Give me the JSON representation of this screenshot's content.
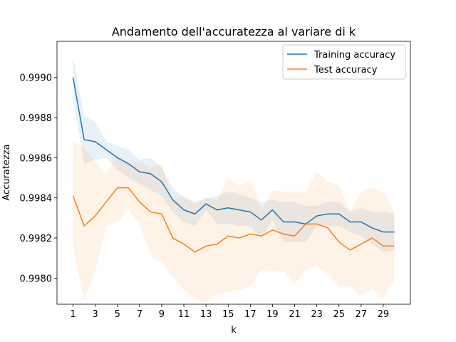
{
  "chart_data": {
    "type": "line",
    "title": "Andamento dell'accuratezza al variare di k",
    "xlabel": "k",
    "ylabel": "Accuratezza",
    "xlim": [
      -0.45,
      31.45
    ],
    "ylim": [
      0.99787,
      0.99918
    ],
    "xticks": [
      1,
      3,
      5,
      7,
      9,
      11,
      13,
      15,
      17,
      19,
      21,
      23,
      25,
      27,
      29
    ],
    "yticks": [
      0.998,
      0.9982,
      0.9984,
      0.9986,
      0.9988,
      0.999
    ],
    "ytick_labels": [
      "0.9980",
      "0.9982",
      "0.9984",
      "0.9986",
      "0.9988",
      "0.9990"
    ],
    "legend_position": "upper right",
    "grid": false,
    "x": [
      1,
      2,
      3,
      4,
      5,
      6,
      7,
      8,
      9,
      10,
      11,
      12,
      13,
      14,
      15,
      16,
      17,
      18,
      19,
      20,
      21,
      22,
      23,
      24,
      25,
      26,
      27,
      28,
      29,
      30
    ],
    "series": [
      {
        "name": "Training accuracy",
        "color": "#1f77b4",
        "values": [
          0.999,
          0.99869,
          0.99868,
          0.99864,
          0.9986,
          0.99857,
          0.99853,
          0.99852,
          0.99848,
          0.99839,
          0.99834,
          0.99832,
          0.99837,
          0.99834,
          0.99835,
          0.99834,
          0.99833,
          0.99829,
          0.99834,
          0.99828,
          0.99828,
          0.99827,
          0.99831,
          0.99832,
          0.99832,
          0.99828,
          0.99828,
          0.99825,
          0.99823,
          0.99823
        ],
        "band_upper": [
          0.99911,
          0.99881,
          0.99878,
          0.99868,
          0.99866,
          0.99864,
          0.99859,
          0.9986,
          0.99855,
          0.99845,
          0.9984,
          0.99838,
          0.9984,
          0.99841,
          0.99843,
          0.99842,
          0.9984,
          0.99838,
          0.99839,
          0.99838,
          0.99838,
          0.99836,
          0.99836,
          0.99838,
          0.99838,
          0.99833,
          0.99835,
          0.99833,
          0.99833,
          0.99832
        ],
        "band_lower": [
          0.99889,
          0.99857,
          0.99859,
          0.9986,
          0.99854,
          0.9985,
          0.99847,
          0.99844,
          0.99841,
          0.99833,
          0.99828,
          0.99826,
          0.99834,
          0.99827,
          0.99827,
          0.99826,
          0.99826,
          0.9982,
          0.99829,
          0.99818,
          0.99818,
          0.99818,
          0.99826,
          0.99826,
          0.99826,
          0.99823,
          0.99821,
          0.99817,
          0.99813,
          0.99814
        ],
        "band_color": "#1f77b4"
      },
      {
        "name": "Test accuracy",
        "color": "#ff7f0e",
        "values": [
          0.99841,
          0.99826,
          0.99831,
          0.99838,
          0.99845,
          0.99845,
          0.99838,
          0.99833,
          0.99832,
          0.9982,
          0.99817,
          0.99813,
          0.99816,
          0.99817,
          0.99821,
          0.9982,
          0.99822,
          0.99821,
          0.99824,
          0.99822,
          0.99821,
          0.99827,
          0.99827,
          0.99825,
          0.99818,
          0.99814,
          0.99817,
          0.9982,
          0.99816,
          0.99816
        ],
        "band_upper": [
          0.99868,
          0.99865,
          0.99858,
          0.99852,
          0.99862,
          0.99857,
          0.99858,
          0.99855,
          0.99857,
          0.99839,
          0.99841,
          0.99837,
          0.9984,
          0.99839,
          0.9985,
          0.99846,
          0.99849,
          0.99834,
          0.99844,
          0.99843,
          0.99843,
          0.99843,
          0.99853,
          0.99848,
          0.99846,
          0.99833,
          0.99843,
          0.99845,
          0.99843,
          0.99833
        ],
        "band_lower": [
          0.99815,
          0.99789,
          0.99804,
          0.99826,
          0.99828,
          0.99834,
          0.99827,
          0.99811,
          0.99808,
          0.99801,
          0.99794,
          0.9979,
          0.99788,
          0.99792,
          0.99793,
          0.99794,
          0.99796,
          0.99804,
          0.99804,
          0.99803,
          0.99797,
          0.99804,
          0.99806,
          0.99802,
          0.99796,
          0.99796,
          0.99791,
          0.99795,
          0.9979,
          0.99799
        ],
        "band_color": "#ff7f0e"
      }
    ]
  }
}
